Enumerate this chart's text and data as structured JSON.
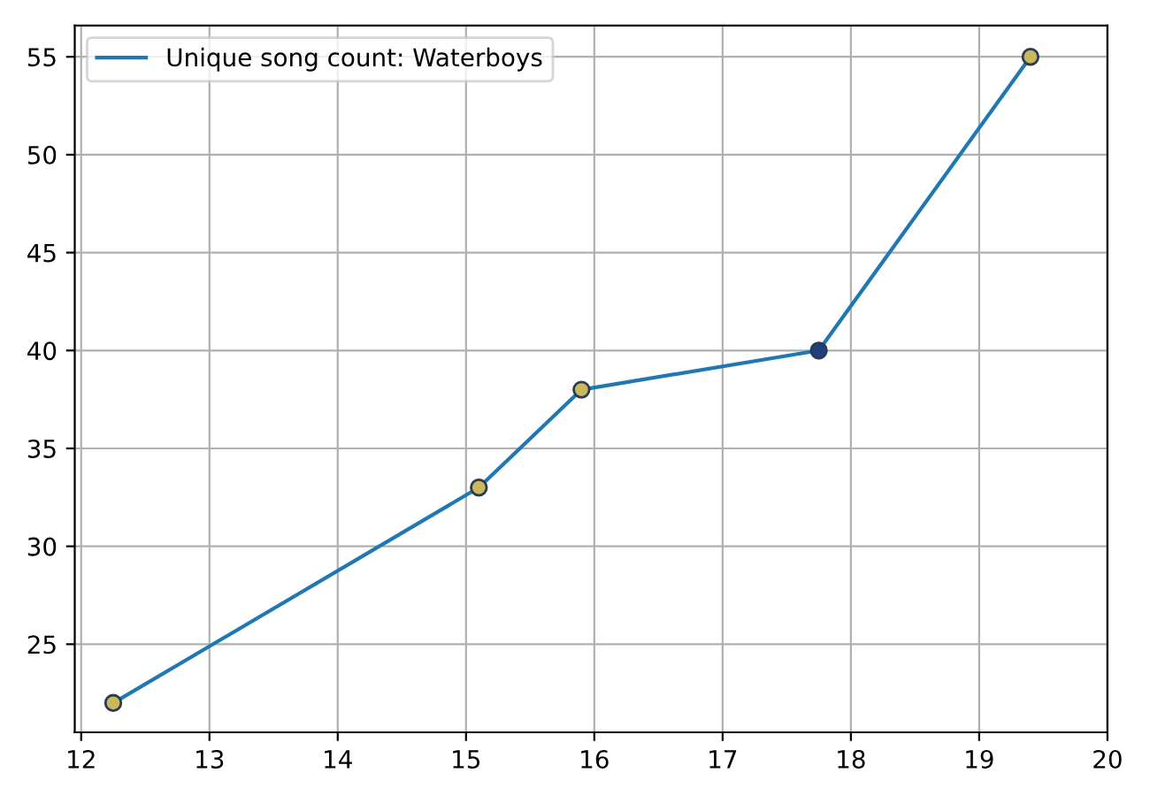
{
  "chart_data": {
    "type": "line",
    "x": [
      12.25,
      15.1,
      15.9,
      17.75,
      19.4
    ],
    "series": [
      {
        "name": "Unique song count: Waterboys",
        "color": "#1f77b4",
        "values": [
          22,
          33,
          38,
          40,
          55
        ],
        "colors": [
          "#c9b95c",
          "#c9b95c",
          "#c9b95c",
          "#1f3f80",
          "#c9b95c"
        ]
      }
    ],
    "marker": "circle",
    "xlim": [
      11.95,
      20
    ],
    "xticks": [
      12,
      13,
      14,
      15,
      16,
      17,
      18,
      19,
      20
    ],
    "ylim": [
      20.5,
      56.6
    ],
    "yticks": [
      25,
      30,
      35,
      40,
      45,
      50,
      55
    ],
    "grid": true,
    "legend": "top left"
  }
}
